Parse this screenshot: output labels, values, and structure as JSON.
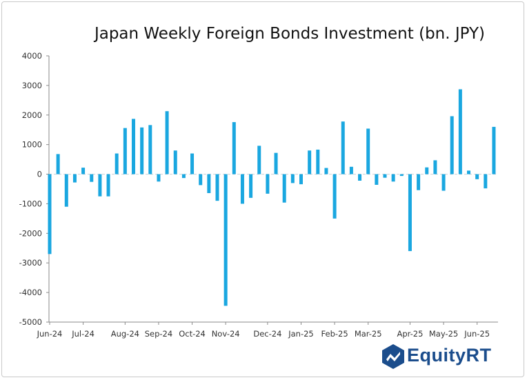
{
  "chart_data": {
    "type": "bar",
    "title": "Japan Weekly Foreign Bonds Investment (bn. JPY)",
    "ylim": [
      -5000,
      4000
    ],
    "yticks": [
      4000,
      3000,
      2000,
      1000,
      0,
      -1000,
      -2000,
      -3000,
      -4000,
      -5000
    ],
    "xtick_labels": [
      "Jun-24",
      "Jul-24",
      "Aug-24",
      "Sep-24",
      "Oct-24",
      "Nov-24",
      "Dec-24",
      "Jan-25",
      "Feb-25",
      "Mar-25",
      "Apr-25",
      "May-25",
      "Jun-25"
    ],
    "xtick_bar_index": [
      0,
      4,
      9,
      13,
      17,
      21,
      26,
      30,
      34,
      38,
      43,
      47,
      51
    ],
    "bar_color": "#1aa7e0",
    "series": [
      {
        "name": "Weekly Foreign Bonds Investment",
        "values": [
          -2700,
          680,
          -1100,
          -280,
          220,
          -260,
          -750,
          -750,
          700,
          1560,
          1870,
          1580,
          1660,
          -250,
          2130,
          800,
          -130,
          700,
          -370,
          -640,
          -900,
          -4450,
          1760,
          -1000,
          -800,
          960,
          -660,
          720,
          -960,
          -300,
          -340,
          800,
          830,
          210,
          -1500,
          1780,
          250,
          -220,
          1540,
          -360,
          -120,
          -250,
          -60,
          -2600,
          -540,
          230,
          470,
          -560,
          1960,
          2870,
          120,
          -170,
          -480,
          1600
        ]
      }
    ]
  },
  "branding": {
    "logo_text": "EquityRT",
    "logo_icon": "equityrt-logo-icon"
  }
}
